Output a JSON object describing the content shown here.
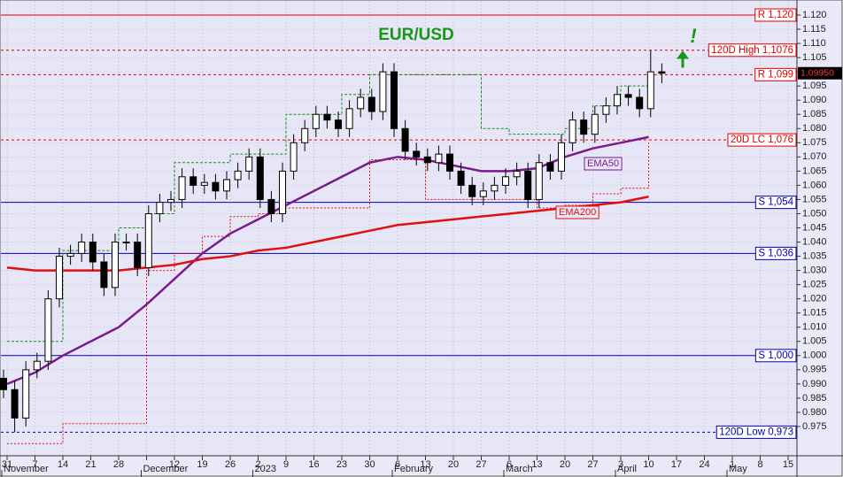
{
  "chart_data": {
    "type": "candlestick",
    "title": "EUR/USD",
    "annotation": "!",
    "categories": [
      "31",
      "7",
      "14",
      "21",
      "28",
      null,
      "12",
      "19",
      "26",
      "2",
      "9",
      "16",
      "23",
      "30",
      "6",
      "13",
      "20",
      "27",
      "6",
      "13",
      "20",
      "27",
      "3",
      "10",
      "17",
      "24",
      "1",
      "8",
      "15"
    ],
    "months": [
      "November",
      null,
      null,
      null,
      null,
      "December",
      null,
      null,
      null,
      "2023",
      null,
      null,
      null,
      null,
      "February",
      null,
      null,
      null,
      "March",
      null,
      null,
      null,
      "April",
      null,
      null,
      null,
      "May",
      null,
      null
    ],
    "candles": {
      "up_color": "#ffffff",
      "down_color": "#000000",
      "open": [
        0.992,
        0.988,
        0.978,
        0.995,
        0.998,
        1.02,
        1.035,
        1.036,
        1.04,
        1.033,
        1.024,
        1.04,
        1.04,
        1.031,
        1.05,
        1.054,
        1.055,
        1.063,
        1.06,
        1.061,
        1.058,
        1.062,
        1.065,
        1.07,
        1.055,
        1.05,
        1.065,
        1.075,
        1.08,
        1.085,
        1.083,
        1.08,
        1.087,
        1.091,
        1.086,
        1.1,
        1.08,
        1.072,
        1.07,
        1.068,
        1.071,
        1.065,
        1.06,
        1.056,
        1.058,
        1.06,
        1.063,
        1.065,
        1.055,
        1.068,
        1.065,
        1.075,
        1.083,
        1.078,
        1.085,
        1.088,
        1.092,
        1.091,
        1.087,
        1.1
      ],
      "high": [
        0.995,
        0.991,
        0.998,
        1.001,
        1.023,
        1.038,
        1.039,
        1.043,
        1.043,
        1.036,
        1.043,
        1.043,
        1.043,
        1.053,
        1.057,
        1.058,
        1.066,
        1.066,
        1.064,
        1.064,
        1.065,
        1.068,
        1.073,
        1.073,
        1.058,
        1.068,
        1.078,
        1.083,
        1.088,
        1.088,
        1.086,
        1.09,
        1.094,
        1.094,
        1.103,
        1.103,
        1.083,
        1.075,
        1.073,
        1.074,
        1.074,
        1.068,
        1.063,
        1.061,
        1.063,
        1.066,
        1.068,
        1.068,
        1.071,
        1.071,
        1.078,
        1.086,
        1.086,
        1.088,
        1.091,
        1.095,
        1.095,
        1.094,
        1.1076,
        1.103
      ],
      "low": [
        0.985,
        0.973,
        0.975,
        0.992,
        0.995,
        1.017,
        1.032,
        1.033,
        1.03,
        1.021,
        1.021,
        1.037,
        1.028,
        1.028,
        1.047,
        1.051,
        1.052,
        1.057,
        1.057,
        1.055,
        1.055,
        1.059,
        1.062,
        1.052,
        1.047,
        1.047,
        1.062,
        1.072,
        1.077,
        1.08,
        1.077,
        1.077,
        1.084,
        1.083,
        1.083,
        1.077,
        1.069,
        1.067,
        1.065,
        1.065,
        1.062,
        1.057,
        1.053,
        1.053,
        1.055,
        1.057,
        1.06,
        1.052,
        1.052,
        1.062,
        1.062,
        1.072,
        1.075,
        1.075,
        1.082,
        1.085,
        1.088,
        1.084,
        1.084,
        1.096
      ],
      "close": [
        0.988,
        0.978,
        0.995,
        0.998,
        1.02,
        1.035,
        1.036,
        1.04,
        1.033,
        1.024,
        1.04,
        1.04,
        1.031,
        1.05,
        1.054,
        1.055,
        1.063,
        1.06,
        1.061,
        1.058,
        1.062,
        1.065,
        1.07,
        1.055,
        1.05,
        1.065,
        1.075,
        1.08,
        1.085,
        1.083,
        1.08,
        1.087,
        1.091,
        1.086,
        1.1,
        1.08,
        1.072,
        1.07,
        1.068,
        1.071,
        1.065,
        1.06,
        1.056,
        1.058,
        1.06,
        1.063,
        1.065,
        1.055,
        1.068,
        1.065,
        1.075,
        1.083,
        1.078,
        1.085,
        1.088,
        1.092,
        1.091,
        1.087,
        1.1,
        1.0995
      ]
    },
    "series": [
      {
        "name": "EMA50",
        "color": "#7a1a8c",
        "style": "solid",
        "values": [
          0.99,
          0.994,
          1.0,
          1.005,
          1.01,
          1.018,
          1.027,
          1.036,
          1.043,
          1.048,
          1.053,
          1.058,
          1.063,
          1.068,
          1.07,
          1.069,
          1.067,
          1.065,
          1.065,
          1.066,
          1.07,
          1.073,
          1.075,
          1.077,
          null,
          null,
          null,
          null,
          null
        ]
      },
      {
        "name": "EMA200",
        "color": "#e01010",
        "style": "solid",
        "values": [
          1.031,
          1.03,
          1.03,
          1.03,
          1.03,
          1.031,
          1.032,
          1.034,
          1.035,
          1.037,
          1.038,
          1.04,
          1.042,
          1.044,
          1.046,
          1.047,
          1.048,
          1.049,
          1.05,
          1.051,
          1.052,
          1.053,
          1.054,
          1.056,
          null,
          null,
          null,
          null,
          null
        ]
      },
      {
        "color": "#1a8c1a",
        "style": "step",
        "values": [
          1.005,
          1.005,
          1.037,
          1.037,
          1.045,
          1.05,
          1.068,
          1.068,
          1.071,
          1.071,
          1.085,
          1.085,
          1.092,
          1.099,
          1.099,
          1.099,
          1.099,
          1.08,
          1.078,
          1.078,
          1.08,
          1.088,
          1.095,
          1.098,
          null,
          null,
          null,
          null,
          null
        ]
      },
      {
        "color": "#e01010",
        "style": "step",
        "values": [
          0.969,
          0.969,
          0.976,
          0.976,
          0.976,
          1.03,
          1.036,
          1.042,
          1.049,
          1.05,
          1.052,
          1.052,
          1.052,
          1.069,
          1.069,
          1.055,
          1.055,
          1.055,
          1.055,
          1.052,
          1.053,
          1.057,
          1.059,
          1.075,
          null,
          null,
          null,
          null,
          null
        ]
      }
    ],
    "levels": [
      {
        "label": "R 1,120",
        "value": 1.12,
        "color": "#e00000",
        "style": "solid"
      },
      {
        "label": "120D High 1,1076",
        "value": 1.1076,
        "color": "#e00000",
        "style": "dashed"
      },
      {
        "label": "R 1,099",
        "value": 1.099,
        "color": "#e00000",
        "style": "dashed"
      },
      {
        "label": "20D LC 1,076",
        "value": 1.076,
        "color": "#e00000",
        "style": "dashed"
      },
      {
        "label": "S 1,054",
        "value": 1.054,
        "color": "#0000b0",
        "style": "solid"
      },
      {
        "label": "S 1,036",
        "value": 1.036,
        "color": "#0000b0",
        "style": "solid"
      },
      {
        "label": "S 1,000",
        "value": 1,
        "color": "#0000b0",
        "style": "solid"
      },
      {
        "label": "120D Low 0,973",
        "value": 0.973,
        "color": "#0000b0",
        "style": "dashed"
      }
    ],
    "last_price": {
      "value": 1.0995,
      "label": "1.09950"
    },
    "ylim": [
      0.9647,
      1.1253
    ],
    "yticks": [
      {
        "value": 0.975,
        "label": "0.975"
      },
      {
        "value": 0.98,
        "label": "0.980"
      },
      {
        "value": 0.985,
        "label": "0.985"
      },
      {
        "value": 0.99,
        "label": "0.990"
      },
      {
        "value": 0.995,
        "label": "0.995"
      },
      {
        "value": 1,
        "label": "1.000"
      },
      {
        "value": 1.005,
        "label": "1.005"
      },
      {
        "value": 1.01,
        "label": "1.010"
      },
      {
        "value": 1.015,
        "label": "1.015"
      },
      {
        "value": 1.02,
        "label": "1.020"
      },
      {
        "value": 1.025,
        "label": "1.025"
      },
      {
        "value": 1.03,
        "label": "1.030"
      },
      {
        "value": 1.035,
        "label": "1.035"
      },
      {
        "value": 1.04,
        "label": "1.040"
      },
      {
        "value": 1.045,
        "label": "1.045"
      },
      {
        "value": 1.05,
        "label": "1.050"
      },
      {
        "value": 1.055,
        "label": "1.055"
      },
      {
        "value": 1.06,
        "label": "1.060"
      },
      {
        "value": 1.065,
        "label": "1.065"
      },
      {
        "value": 1.07,
        "label": "1.070"
      },
      {
        "value": 1.075,
        "label": "1.075"
      },
      {
        "value": 1.08,
        "label": "1.080"
      },
      {
        "value": 1.085,
        "label": "1.085"
      },
      {
        "value": 1.09,
        "label": "1.090"
      },
      {
        "value": 1.095,
        "label": "1.095"
      },
      {
        "value": 1.1,
        "label": "1.100"
      },
      {
        "value": 1.105,
        "label": "1.105"
      },
      {
        "value": 1.11,
        "label": "1.110"
      },
      {
        "value": 1.115,
        "label": "1.115"
      },
      {
        "value": 1.12,
        "label": "1.120"
      }
    ],
    "grid": true
  }
}
